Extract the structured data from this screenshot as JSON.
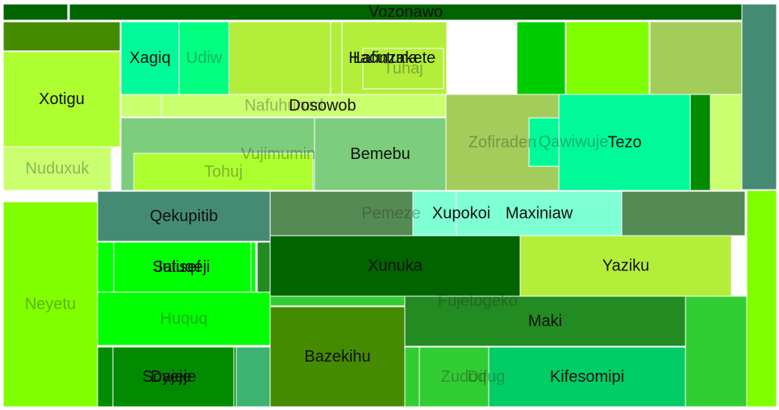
{
  "chart_data": {
    "type": "treemap",
    "title": "",
    "cells": [
      {
        "label": "",
        "color": "#006400"
      },
      {
        "label": "Vozonawo",
        "color": "#006400"
      },
      {
        "label": "",
        "color": "#458B74"
      },
      {
        "label": "",
        "color": "#458B00"
      },
      {
        "label": "",
        "color": "#00FA9A"
      },
      {
        "label": "Xagiq",
        "color": "#00FA9A"
      },
      {
        "label": "Udiw",
        "color": "#00FF7F"
      },
      {
        "label": "",
        "color": "#B3EE3A"
      },
      {
        "label": "Hacutuna",
        "color": "#B3EE3A"
      },
      {
        "label": "Lafinzakete",
        "color": "#B3EE3A"
      },
      {
        "label": "Tuhaj",
        "color": "#B3EE3A"
      },
      {
        "label": "",
        "color": "#00CD00"
      },
      {
        "label": "",
        "color": "#7FFF00"
      },
      {
        "label": "",
        "color": "#A2CD5A"
      },
      {
        "label": "Xotigu",
        "color": "#ADFF2F"
      },
      {
        "label": "Nuduxuk",
        "color": "#CAFF70"
      },
      {
        "label": "Nafuhunad",
        "color": "#CAFF70"
      },
      {
        "label": "Dosowob",
        "color": "#CAFF70"
      },
      {
        "label": "Vujimumin",
        "color": "#7CCD7C"
      },
      {
        "label": "Tohuj",
        "color": "#ADFF2F"
      },
      {
        "label": "Bemebu",
        "color": "#7CCD7C"
      },
      {
        "label": "Zofiraden",
        "color": "#A2CD5A"
      },
      {
        "label": "Qawiwuje",
        "color": "#00FA9A"
      },
      {
        "label": "Tezo",
        "color": "#00FA9A"
      },
      {
        "label": "",
        "color": "#008B00"
      },
      {
        "label": "",
        "color": "#CAFF70"
      },
      {
        "label": "",
        "color": "#7FFF00"
      },
      {
        "label": "Qekupitib",
        "color": "#458B74"
      },
      {
        "label": "Pemeze",
        "color": "#548B54"
      },
      {
        "label": "Xupokoi",
        "color": "#7FFFD4"
      },
      {
        "label": "Maxiniaw",
        "color": "#7FFFD4"
      },
      {
        "label": "",
        "color": "#548B54"
      },
      {
        "label": "Salisef",
        "color": "#00FF00"
      },
      {
        "label": "Jutuqeji",
        "color": "#00FF00"
      },
      {
        "label": "",
        "color": "#228B22"
      },
      {
        "label": "Xunuka",
        "color": "#006400"
      },
      {
        "label": "Yaziku",
        "color": "#B3EE3A"
      },
      {
        "label": "Fujetogeko",
        "color": "#32CD32"
      },
      {
        "label": "Huquq",
        "color": "#00FF00"
      },
      {
        "label": "Neyetu",
        "color": "#7FFF00"
      },
      {
        "label": "Bazekihu",
        "color": "#458B00"
      },
      {
        "label": "Maki",
        "color": "#228B22"
      },
      {
        "label": "Difug",
        "color": "#32CD32"
      },
      {
        "label": "Zudoq",
        "color": "#32CD32"
      },
      {
        "label": "Kifesomipi",
        "color": "#00CD66"
      },
      {
        "label": "Soyeje",
        "color": "#008B00"
      },
      {
        "label": "Dajeje",
        "color": "#008B00"
      },
      {
        "label": "",
        "color": "#3CB371"
      },
      {
        "label": "",
        "color": "#32CD32"
      }
    ]
  }
}
